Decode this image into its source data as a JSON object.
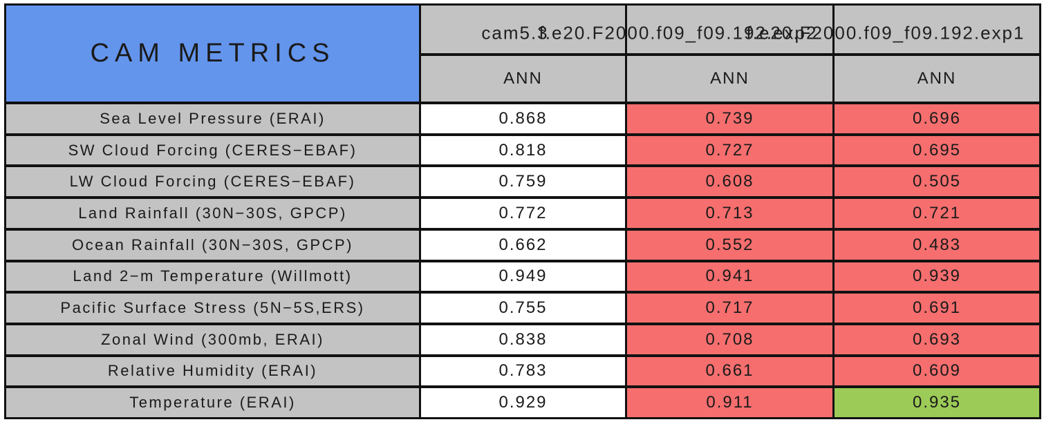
{
  "colors": {
    "title_bg": "#6495ED",
    "header_bg": "#C3C3C3",
    "good_bg": "#FFFFFF",
    "worse_bg": "#F66E6E",
    "better_bg": "#9CCB57",
    "border": "#111111"
  },
  "chart_data": {
    "type": "table",
    "title": "CAM METRICS",
    "columns": [
      {
        "run": "cam5.3",
        "season": "ANN"
      },
      {
        "run": "f.e20.F2000.f09_f09.192.exp2",
        "season": "ANN"
      },
      {
        "run": "f.e20.F2000.f09_f09.192.exp1",
        "season": "ANN"
      }
    ],
    "rows": [
      {
        "metric": "Sea Level Pressure (ERAI)",
        "values": [
          "0.868",
          "0.739",
          "0.696"
        ],
        "colors": [
          "white",
          "red",
          "red"
        ]
      },
      {
        "metric": "SW Cloud Forcing (CERES−EBAF)",
        "values": [
          "0.818",
          "0.727",
          "0.695"
        ],
        "colors": [
          "white",
          "red",
          "red"
        ]
      },
      {
        "metric": "LW Cloud Forcing (CERES−EBAF)",
        "values": [
          "0.759",
          "0.608",
          "0.505"
        ],
        "colors": [
          "white",
          "red",
          "red"
        ]
      },
      {
        "metric": "Land Rainfall (30N−30S, GPCP)",
        "values": [
          "0.772",
          "0.713",
          "0.721"
        ],
        "colors": [
          "white",
          "red",
          "red"
        ]
      },
      {
        "metric": "Ocean Rainfall (30N−30S, GPCP)",
        "values": [
          "0.662",
          "0.552",
          "0.483"
        ],
        "colors": [
          "white",
          "red",
          "red"
        ]
      },
      {
        "metric": "Land 2−m Temperature (Willmott)",
        "values": [
          "0.949",
          "0.941",
          "0.939"
        ],
        "colors": [
          "white",
          "red",
          "red"
        ]
      },
      {
        "metric": "Pacific Surface Stress (5N−5S,ERS)",
        "values": [
          "0.755",
          "0.717",
          "0.691"
        ],
        "colors": [
          "white",
          "red",
          "red"
        ]
      },
      {
        "metric": "Zonal Wind (300mb, ERAI)",
        "values": [
          "0.838",
          "0.708",
          "0.693"
        ],
        "colors": [
          "white",
          "red",
          "red"
        ]
      },
      {
        "metric": "Relative Humidity (ERAI)",
        "values": [
          "0.783",
          "0.661",
          "0.609"
        ],
        "colors": [
          "white",
          "red",
          "red"
        ]
      },
      {
        "metric": "Temperature (ERAI)",
        "values": [
          "0.929",
          "0.911",
          "0.935"
        ],
        "colors": [
          "white",
          "red",
          "green"
        ]
      }
    ]
  }
}
